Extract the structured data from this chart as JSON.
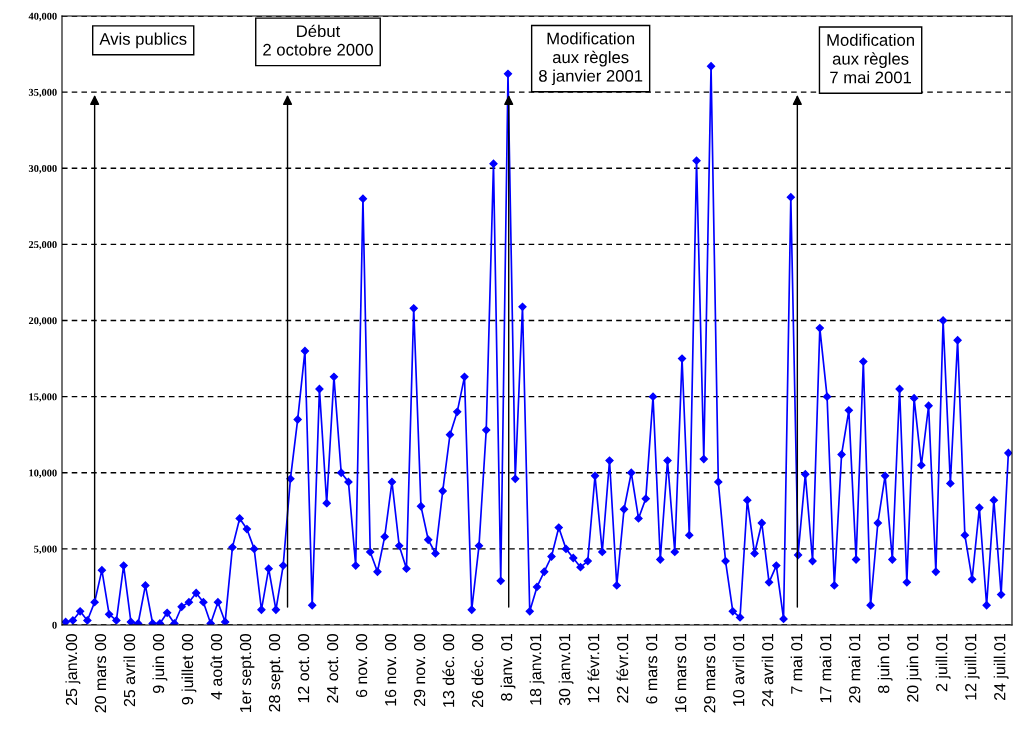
{
  "chart_data": {
    "type": "line",
    "categories": [
      null,
      "25 janv.00",
      null,
      null,
      null,
      "20 mars 00",
      null,
      null,
      null,
      "25 avril 00",
      null,
      null,
      null,
      "9 juin 00",
      null,
      null,
      null,
      "9 juillet 00",
      null,
      null,
      null,
      "4 août 00",
      null,
      null,
      null,
      "1er sept.00",
      null,
      null,
      null,
      "28 sept. 00",
      null,
      null,
      null,
      "12 oct. 00",
      null,
      null,
      null,
      "24 oct. 00",
      null,
      null,
      null,
      "6 nov. 00",
      null,
      null,
      null,
      "16 nov. 00",
      null,
      null,
      null,
      "29 nov. 00",
      null,
      null,
      null,
      "13 déc. 00",
      null,
      null,
      null,
      "26 déc. 00",
      null,
      null,
      null,
      "8 janv. 01",
      null,
      null,
      null,
      "18 janv.01",
      null,
      null,
      null,
      "30 janv.01",
      null,
      null,
      null,
      "12 févr.01",
      null,
      null,
      null,
      "22 févr.01",
      null,
      null,
      null,
      "6 mars 01",
      null,
      null,
      null,
      "16 mars 01",
      null,
      null,
      null,
      "29 mars 01",
      null,
      null,
      null,
      "10 avril 01",
      null,
      null,
      null,
      "24 avril 01",
      null,
      null,
      null,
      "7 mai 01",
      null,
      null,
      null,
      "17 mai 01",
      null,
      null,
      null,
      "29 mai 01",
      null,
      null,
      null,
      "8 juin 01",
      null,
      null,
      null,
      "20 juin 01",
      null,
      null,
      null,
      "2 juill.01",
      null,
      null,
      null,
      "12 juill.01",
      null,
      null,
      null,
      "24 juill.01",
      null
    ],
    "series": [
      {
        "color": "#0000ff",
        "values": [
          200,
          300,
          900,
          300,
          1500,
          3600,
          700,
          300,
          3900,
          200,
          100,
          2600,
          100,
          100,
          800,
          100,
          1200,
          1500,
          2100,
          1500,
          100,
          1500,
          200,
          5100,
          7000,
          6300,
          5000,
          1000,
          3700,
          1000,
          3900,
          9600,
          13500,
          18000,
          1300,
          15500,
          8000,
          16300,
          10000,
          9400,
          3900,
          28000,
          4800,
          3500,
          5800,
          9400,
          5200,
          3700,
          20800,
          7800,
          5600,
          4700,
          8800,
          12500,
          14000,
          16300,
          1000,
          5200,
          12800,
          30300,
          2900,
          36200,
          9600,
          20900,
          900,
          2500,
          3500,
          4500,
          6400,
          5000,
          4400,
          3800,
          4200,
          9800,
          4800,
          10800,
          2600,
          7600,
          10000,
          7000,
          8300,
          15000,
          4300,
          10800,
          4800,
          17500,
          5900,
          30500,
          10900,
          36700,
          9400,
          4200,
          900,
          500,
          8200,
          4700,
          6700,
          2800,
          3900,
          400,
          28100,
          4600,
          9900,
          4200,
          19500,
          15000,
          2600,
          11200,
          14100,
          4300,
          17300,
          1300,
          6700,
          9800,
          4300,
          15500,
          2800,
          14900,
          10500,
          14400,
          3500,
          20000,
          9300,
          18700,
          5900,
          3000,
          7700,
          1300,
          8200,
          2000,
          11300
        ]
      }
    ],
    "ylim": [
      0,
      40000
    ],
    "yticks": [
      0,
      {
        "value": 5000,
        "label": "5,000"
      },
      {
        "value": 10000,
        "label": "10,000"
      },
      {
        "value": 15000,
        "label": "15,000"
      },
      {
        "value": 20000,
        "label": "20,000"
      },
      {
        "value": 25000,
        "label": "25,000"
      },
      {
        "value": 30000,
        "label": "30,000"
      },
      {
        "value": 35000,
        "label": "35,000"
      },
      {
        "value": 40000,
        "label": "40,000"
      }
    ],
    "grid": "y",
    "marker": "diamond",
    "line_style": "solid",
    "legend": false,
    "annotations": [
      "Avis publics",
      "Début\n2 octobre 2000",
      "Modification\naux règles\n8 janvier 2001",
      "Modification\naux règles\n7 mai 2001"
    ]
  }
}
